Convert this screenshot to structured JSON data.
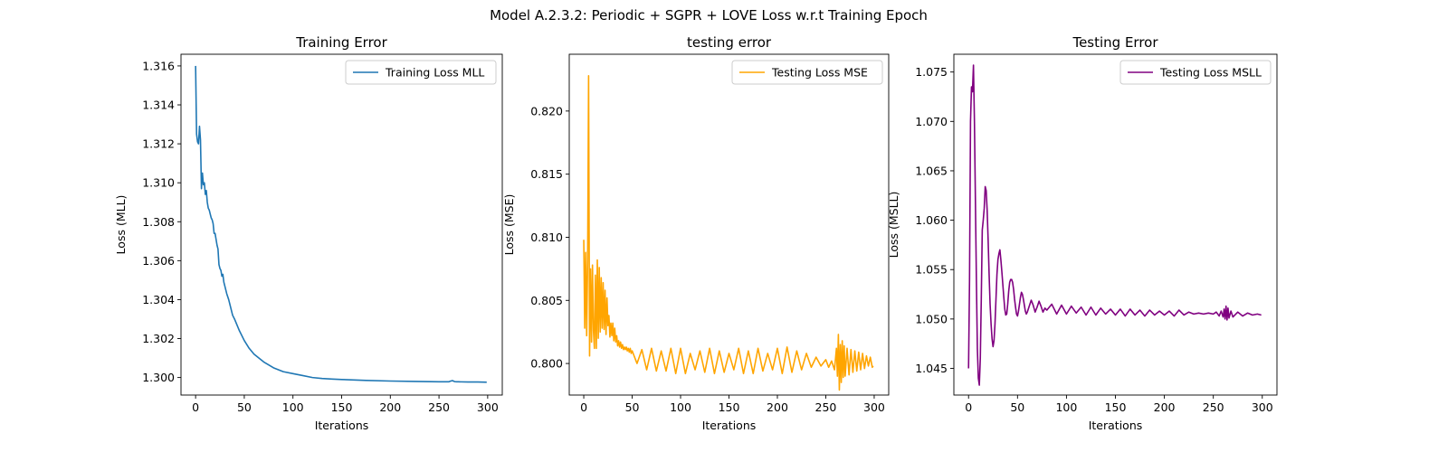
{
  "figure": {
    "suptitle": "Model A.2.3.2: Periodic + SGPR + LOVE Loss w.r.t Training Epoch"
  },
  "chart_data": [
    {
      "type": "line",
      "title": "Training Error",
      "xlabel": "Iterations",
      "ylabel": "Loss (MLL)",
      "xlim": [
        -15,
        315
      ],
      "ylim": [
        1.2991,
        1.3166
      ],
      "xticks": [
        0,
        50,
        100,
        150,
        200,
        250,
        300
      ],
      "yticks": [
        1.3,
        1.302,
        1.304,
        1.306,
        1.308,
        1.31,
        1.312,
        1.314,
        1.316
      ],
      "ytick_decimals": 3,
      "legend_position": "upper right",
      "series": [
        {
          "name": "Training Loss MLL",
          "color": "#1f77b4",
          "x": [
            0,
            1,
            2,
            3,
            4,
            5,
            6,
            7,
            8,
            9,
            10,
            11,
            12,
            13,
            14,
            15,
            16,
            17,
            18,
            19,
            20,
            21,
            22,
            23,
            24,
            25,
            26,
            27,
            28,
            29,
            30,
            32,
            34,
            36,
            38,
            40,
            45,
            50,
            55,
            60,
            70,
            80,
            90,
            100,
            110,
            120,
            130,
            140,
            150,
            175,
            200,
            225,
            250,
            260,
            262,
            264,
            266,
            268,
            270,
            280,
            290,
            299
          ],
          "y": [
            1.316,
            1.3125,
            1.3121,
            1.312,
            1.3129,
            1.3122,
            1.3097,
            1.3105,
            1.3099,
            1.31,
            1.3094,
            1.3096,
            1.309,
            1.3087,
            1.3086,
            1.3084,
            1.3082,
            1.3081,
            1.3079,
            1.3074,
            1.3074,
            1.3071,
            1.3068,
            1.3066,
            1.3058,
            1.3056,
            1.3055,
            1.3052,
            1.3053,
            1.3049,
            1.3047,
            1.3043,
            1.304,
            1.3036,
            1.3032,
            1.303,
            1.3024,
            1.3019,
            1.3015,
            1.3012,
            1.3008,
            1.3005,
            1.3003,
            1.3002,
            1.3001,
            1.3,
            1.29995,
            1.29992,
            1.2999,
            1.29985,
            1.29982,
            1.2998,
            1.29978,
            1.29978,
            1.29982,
            1.29984,
            1.29979,
            1.29978,
            1.29978,
            1.29977,
            1.29977,
            1.29976
          ]
        }
      ]
    },
    {
      "type": "line",
      "title": "testing error",
      "xlabel": "Iterations",
      "ylabel": "Loss (MSE)",
      "xlim": [
        -15,
        315
      ],
      "ylim": [
        0.7975,
        0.8245
      ],
      "xticks": [
        0,
        50,
        100,
        150,
        200,
        250,
        300
      ],
      "yticks": [
        0.8,
        0.805,
        0.81,
        0.815,
        0.82
      ],
      "ytick_decimals": 3,
      "legend_position": "upper right",
      "series": [
        {
          "name": "Testing Loss MSE",
          "color": "#ffa500",
          "x": [
            0,
            1,
            2,
            3,
            4,
            5,
            6,
            7,
            8,
            9,
            10,
            11,
            12,
            13,
            14,
            15,
            16,
            17,
            18,
            19,
            20,
            21,
            22,
            23,
            24,
            25,
            26,
            27,
            28,
            29,
            30,
            31,
            32,
            33,
            34,
            35,
            36,
            37,
            38,
            39,
            40,
            41,
            42,
            43,
            44,
            45,
            46,
            47,
            48,
            49,
            50,
            55,
            60,
            65,
            70,
            75,
            80,
            85,
            90,
            95,
            100,
            105,
            110,
            115,
            120,
            125,
            130,
            135,
            140,
            145,
            150,
            155,
            160,
            165,
            170,
            175,
            180,
            185,
            190,
            195,
            200,
            205,
            210,
            215,
            220,
            225,
            230,
            235,
            240,
            245,
            250,
            253,
            256,
            259,
            261,
            262,
            263,
            264,
            265,
            266,
            267,
            268,
            269,
            270,
            272,
            274,
            276,
            278,
            280,
            282,
            284,
            286,
            288,
            290,
            292,
            294,
            296,
            298,
            299
          ],
          "y": [
            0.8098,
            0.8028,
            0.8088,
            0.8022,
            0.8081,
            0.8228,
            0.8006,
            0.8075,
            0.8017,
            0.8078,
            0.8026,
            0.8012,
            0.807,
            0.8012,
            0.8082,
            0.802,
            0.8076,
            0.8025,
            0.8068,
            0.8028,
            0.8064,
            0.8027,
            0.8058,
            0.8023,
            0.8052,
            0.803,
            0.8038,
            0.8021,
            0.8032,
            0.8022,
            0.8032,
            0.8018,
            0.8028,
            0.8017,
            0.8022,
            0.8014,
            0.8018,
            0.8013,
            0.8017,
            0.8012,
            0.8015,
            0.8011,
            0.8013,
            0.8011,
            0.8013,
            0.801,
            0.8012,
            0.8009,
            0.8012,
            0.8008,
            0.801,
            0.8,
            0.8011,
            0.7995,
            0.8012,
            0.7994,
            0.801,
            0.7994,
            0.8012,
            0.7992,
            0.8012,
            0.7992,
            0.8008,
            0.7995,
            0.801,
            0.7993,
            0.8012,
            0.7992,
            0.801,
            0.7993,
            0.8008,
            0.7995,
            0.8012,
            0.7992,
            0.801,
            0.7992,
            0.8012,
            0.7994,
            0.8008,
            0.7995,
            0.8012,
            0.7992,
            0.8013,
            0.7993,
            0.801,
            0.7995,
            0.8008,
            0.7997,
            0.8005,
            0.7998,
            0.8003,
            0.7997,
            0.8002,
            0.7995,
            0.8012,
            0.799,
            0.8023,
            0.7979,
            0.8015,
            0.7985,
            0.8018,
            0.7989,
            0.8014,
            0.799,
            0.8012,
            0.7991,
            0.8011,
            0.7993,
            0.801,
            0.7994,
            0.8009,
            0.7995,
            0.8008,
            0.7996,
            0.8006,
            0.7998,
            0.8005,
            0.7997,
            0.7998
          ]
        }
      ]
    },
    {
      "type": "line",
      "title": "Testing Error",
      "xlabel": "Iterations",
      "ylabel": "Loss (MSLL)",
      "xlim": [
        -15,
        315
      ],
      "ylim": [
        1.0423,
        1.0768
      ],
      "xticks": [
        0,
        50,
        100,
        150,
        200,
        250,
        300
      ],
      "yticks": [
        1.045,
        1.05,
        1.055,
        1.06,
        1.065,
        1.07,
        1.075
      ],
      "ytick_decimals": 3,
      "legend_position": "upper right",
      "series": [
        {
          "name": "Testing Loss MSLL",
          "color": "#800080",
          "x": [
            0,
            1,
            2,
            3,
            4,
            5,
            6,
            7,
            8,
            9,
            10,
            11,
            12,
            13,
            14,
            15,
            16,
            17,
            18,
            19,
            20,
            21,
            22,
            23,
            24,
            25,
            26,
            27,
            28,
            29,
            30,
            31,
            32,
            33,
            34,
            35,
            36,
            37,
            38,
            39,
            40,
            41,
            42,
            43,
            44,
            45,
            46,
            47,
            48,
            49,
            50,
            51,
            52,
            53,
            54,
            55,
            56,
            57,
            58,
            59,
            60,
            62,
            64,
            66,
            68,
            70,
            72,
            74,
            76,
            78,
            80,
            85,
            90,
            95,
            100,
            105,
            110,
            115,
            120,
            125,
            130,
            135,
            140,
            145,
            150,
            155,
            160,
            165,
            170,
            175,
            180,
            185,
            190,
            195,
            200,
            205,
            210,
            215,
            220,
            225,
            230,
            235,
            240,
            245,
            250,
            253,
            256,
            258,
            260,
            261,
            262,
            263,
            264,
            265,
            266,
            268,
            270,
            275,
            280,
            285,
            290,
            295,
            299
          ],
          "y": [
            1.045,
            1.054,
            1.07,
            1.0735,
            1.073,
            1.0757,
            1.07,
            1.062,
            1.054,
            1.047,
            1.044,
            1.0433,
            1.046,
            1.052,
            1.059,
            1.06,
            1.0612,
            1.0634,
            1.063,
            1.061,
            1.058,
            1.0545,
            1.0515,
            1.0495,
            1.048,
            1.0472,
            1.0478,
            1.0495,
            1.052,
            1.0545,
            1.056,
            1.0566,
            1.057,
            1.056,
            1.0548,
            1.0535,
            1.0522,
            1.051,
            1.0504,
            1.0505,
            1.0515,
            1.0528,
            1.0537,
            1.054,
            1.054,
            1.0537,
            1.053,
            1.052,
            1.0512,
            1.0505,
            1.0503,
            1.0508,
            1.0515,
            1.0522,
            1.0527,
            1.0525,
            1.052,
            1.0514,
            1.0508,
            1.0505,
            1.0507,
            1.0513,
            1.0519,
            1.0514,
            1.0507,
            1.0512,
            1.0518,
            1.0513,
            1.0507,
            1.0511,
            1.0509,
            1.0515,
            1.0505,
            1.0514,
            1.0505,
            1.0513,
            1.0506,
            1.0512,
            1.0504,
            1.0512,
            1.0504,
            1.0511,
            1.0505,
            1.051,
            1.0504,
            1.051,
            1.0503,
            1.051,
            1.0504,
            1.0509,
            1.0503,
            1.0509,
            1.0504,
            1.0508,
            1.0504,
            1.0508,
            1.0503,
            1.0509,
            1.0504,
            1.0507,
            1.0505,
            1.0506,
            1.0505,
            1.0506,
            1.0505,
            1.0507,
            1.0503,
            1.0508,
            1.0502,
            1.051,
            1.05,
            1.0513,
            1.0499,
            1.0511,
            1.0501,
            1.0508,
            1.0502,
            1.0507,
            1.0503,
            1.0506,
            1.0504,
            1.0505,
            1.0504
          ]
        }
      ]
    }
  ]
}
